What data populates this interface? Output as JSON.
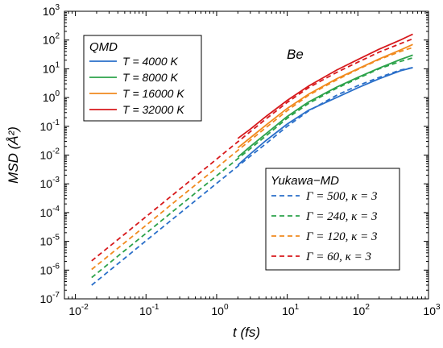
{
  "chart_data": {
    "type": "line",
    "xlabel": "t (fs)",
    "ylabel": "MSD (Å²)",
    "xscale": "log",
    "yscale": "log",
    "xlim": [
      0.007,
      1000
    ],
    "ylim": [
      1e-07,
      1000
    ],
    "x_ticks": [
      "10",
      "10",
      "10",
      "10",
      "10",
      "10"
    ],
    "x_tick_exponents": [
      "-2",
      "-1",
      "0",
      "1",
      "2",
      "3"
    ],
    "y_ticks": [
      "10",
      "10",
      "10",
      "10",
      "10",
      "10",
      "10",
      "10",
      "10",
      "10",
      "10"
    ],
    "y_tick_exponents": [
      "-7",
      "-6",
      "-5",
      "-4",
      "-3",
      "-2",
      "-1",
      "0",
      "1",
      "2",
      "3"
    ],
    "grid": false,
    "annotation": "Be",
    "legends": [
      {
        "title": "QMD",
        "placement": "top-left",
        "entries": [
          "T = 4000 K",
          "T = 8000 K",
          "T = 16000 K",
          "T = 32000 K"
        ]
      },
      {
        "title": "Yukawa−MD",
        "placement": "bottom-right",
        "entries": [
          "Γ = 500, κ = 3",
          "Γ = 240, κ = 3",
          "Γ = 120, κ = 3",
          "Γ = 60, κ = 3"
        ]
      }
    ],
    "series": [
      {
        "name": "T = 4000 K",
        "group": "QMD",
        "style": "solid",
        "color": "#2a6fc9",
        "x": [
          2,
          3,
          5,
          10,
          20,
          50,
          100,
          200,
          400,
          600
        ],
        "y": [
          0.0045,
          0.011,
          0.032,
          0.12,
          0.36,
          1.0,
          2.2,
          4.5,
          8.5,
          11
        ]
      },
      {
        "name": "T = 8000 K",
        "group": "QMD",
        "style": "solid",
        "color": "#2ca24a",
        "x": [
          2,
          3,
          5,
          10,
          20,
          50,
          100,
          200,
          400,
          600
        ],
        "y": [
          0.0085,
          0.02,
          0.055,
          0.22,
          0.7,
          2.3,
          5,
          10.5,
          21,
          30
        ]
      },
      {
        "name": "T = 16000 K",
        "group": "QMD",
        "style": "solid",
        "color": "#f18a1e",
        "x": [
          2,
          3,
          5,
          10,
          20,
          50,
          100,
          200,
          400,
          600
        ],
        "y": [
          0.018,
          0.04,
          0.11,
          0.42,
          1.3,
          4.5,
          10,
          22,
          45,
          70
        ]
      },
      {
        "name": "T = 32000 K",
        "group": "QMD",
        "style": "solid",
        "color": "#d7191c",
        "x": [
          2,
          3,
          5,
          10,
          20,
          50,
          100,
          200,
          400,
          600
        ],
        "y": [
          0.038,
          0.08,
          0.22,
          0.8,
          2.5,
          9,
          21,
          48,
          100,
          160
        ]
      },
      {
        "name": "Γ = 500, κ = 3",
        "group": "Yukawa-MD",
        "style": "dashed",
        "color": "#2a6fc9",
        "x": [
          0.017,
          0.05,
          0.1,
          0.3,
          1,
          2,
          5,
          10,
          20,
          50,
          100,
          200,
          400,
          600
        ],
        "y": [
          3e-07,
          2.6e-06,
          1.05e-05,
          9.4e-05,
          0.00103,
          0.0041,
          0.025,
          0.1,
          0.34,
          1.2,
          2.6,
          5,
          9,
          11
        ]
      },
      {
        "name": "Γ = 240, κ = 3",
        "group": "Yukawa-MD",
        "style": "dashed",
        "color": "#2ca24a",
        "x": [
          0.017,
          0.05,
          0.1,
          0.3,
          1,
          2,
          5,
          10,
          20,
          50,
          100,
          200,
          400,
          600
        ],
        "y": [
          5.5e-07,
          4.8e-06,
          1.9e-05,
          0.000172,
          0.0019,
          0.0075,
          0.046,
          0.19,
          0.62,
          2.1,
          4.6,
          10,
          18,
          24
        ]
      },
      {
        "name": "Γ = 120, κ = 3",
        "group": "Yukawa-MD",
        "style": "dashed",
        "color": "#f18a1e",
        "x": [
          0.017,
          0.05,
          0.1,
          0.3,
          1,
          2,
          5,
          10,
          20,
          50,
          100,
          200,
          400,
          600
        ],
        "y": [
          1.05e-06,
          9e-06,
          3.6e-05,
          0.00033,
          0.0036,
          0.0145,
          0.09,
          0.35,
          1.2,
          4.1,
          9.5,
          21,
          40,
          55
        ]
      },
      {
        "name": "Γ = 60, κ = 3",
        "group": "Yukawa-MD",
        "style": "dashed",
        "color": "#d7191c",
        "x": [
          0.017,
          0.05,
          0.1,
          0.3,
          1,
          2,
          5,
          10,
          20,
          50,
          100,
          200,
          400,
          600
        ],
        "y": [
          2.1e-06,
          1.8e-05,
          7.2e-05,
          0.00065,
          0.0072,
          0.029,
          0.18,
          0.68,
          2.2,
          7.5,
          17,
          38,
          75,
          110
        ]
      }
    ]
  }
}
